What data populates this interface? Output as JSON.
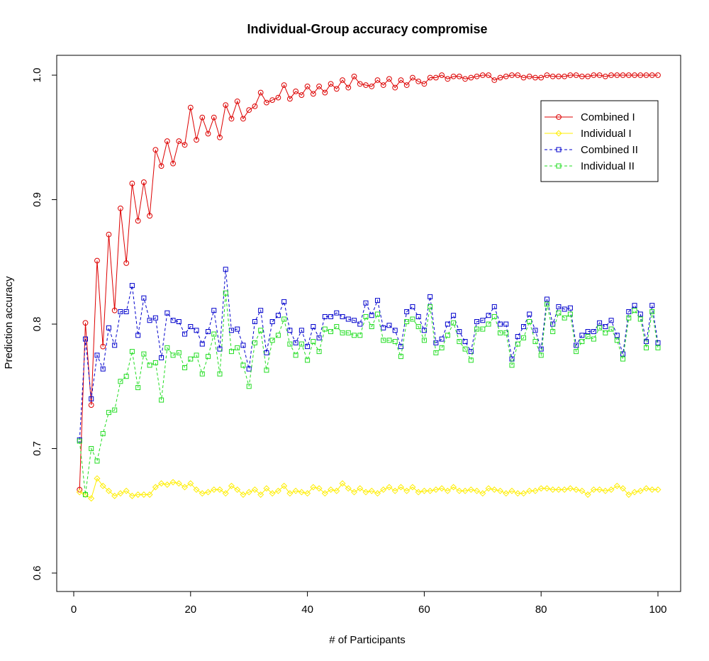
{
  "chart_data": {
    "type": "line",
    "title": "Individual-Group accuracy compromise",
    "xlabel": "# of Participants",
    "ylabel": "Prediction accuracy",
    "xlim": [
      0,
      100
    ],
    "ylim": [
      0.6,
      1.0
    ],
    "xticks": [
      0,
      20,
      40,
      60,
      80,
      100
    ],
    "yticks": [
      0.6,
      0.7,
      0.8,
      0.9,
      1.0
    ],
    "x_tick_labels": [
      "0",
      "20",
      "40",
      "60",
      "80",
      "100"
    ],
    "y_tick_labels": [
      "0.6",
      "0.7",
      "0.8",
      "0.9",
      "1.0"
    ],
    "grid": false,
    "legend_position": "top-right",
    "x": [
      1,
      2,
      3,
      4,
      5,
      6,
      7,
      8,
      9,
      10,
      11,
      12,
      13,
      14,
      15,
      16,
      17,
      18,
      19,
      20,
      21,
      22,
      23,
      24,
      25,
      26,
      27,
      28,
      29,
      30,
      31,
      32,
      33,
      34,
      35,
      36,
      37,
      38,
      39,
      40,
      41,
      42,
      43,
      44,
      45,
      46,
      47,
      48,
      49,
      50,
      51,
      52,
      53,
      54,
      55,
      56,
      57,
      58,
      59,
      60,
      61,
      62,
      63,
      64,
      65,
      66,
      67,
      68,
      69,
      70,
      71,
      72,
      73,
      74,
      75,
      76,
      77,
      78,
      79,
      80,
      81,
      82,
      83,
      84,
      85,
      86,
      87,
      88,
      89,
      90,
      91,
      92,
      93,
      94,
      95,
      96,
      97,
      98,
      99,
      100
    ],
    "series": [
      {
        "name": "Combined I",
        "color": "#dd0000",
        "line_style": "solid",
        "marker": "circle",
        "values": [
          0.667,
          0.801,
          0.735,
          0.851,
          0.782,
          0.872,
          0.811,
          0.893,
          0.849,
          0.913,
          0.883,
          0.914,
          0.887,
          0.94,
          0.927,
          0.947,
          0.929,
          0.947,
          0.944,
          0.974,
          0.948,
          0.966,
          0.953,
          0.966,
          0.95,
          0.976,
          0.965,
          0.979,
          0.965,
          0.972,
          0.975,
          0.986,
          0.978,
          0.98,
          0.982,
          0.992,
          0.981,
          0.987,
          0.984,
          0.991,
          0.985,
          0.991,
          0.986,
          0.993,
          0.989,
          0.996,
          0.99,
          0.999,
          0.993,
          0.992,
          0.991,
          0.996,
          0.992,
          0.997,
          0.99,
          0.996,
          0.992,
          0.998,
          0.995,
          0.993,
          0.998,
          0.998,
          1.0,
          0.997,
          0.999,
          0.999,
          0.997,
          0.998,
          0.999,
          1.0,
          1.0,
          0.996,
          0.998,
          0.999,
          1.0,
          1.0,
          0.998,
          0.999,
          0.998,
          0.998,
          1.0,
          0.999,
          0.999,
          0.999,
          1.0,
          1.0,
          0.999,
          0.999,
          1.0,
          1.0,
          0.999,
          1.0,
          1.0,
          1.0,
          1.0,
          1.0,
          1.0,
          1.0,
          1.0,
          1.0
        ]
      },
      {
        "name": "Individual I",
        "color": "#ffee00",
        "line_style": "solid",
        "marker": "diamond",
        "values": [
          0.665,
          0.663,
          0.66,
          0.676,
          0.67,
          0.666,
          0.662,
          0.664,
          0.666,
          0.662,
          0.663,
          0.663,
          0.663,
          0.669,
          0.672,
          0.671,
          0.673,
          0.672,
          0.669,
          0.672,
          0.667,
          0.664,
          0.665,
          0.667,
          0.667,
          0.664,
          0.67,
          0.667,
          0.663,
          0.665,
          0.667,
          0.663,
          0.668,
          0.664,
          0.666,
          0.67,
          0.664,
          0.666,
          0.665,
          0.664,
          0.669,
          0.668,
          0.664,
          0.667,
          0.666,
          0.672,
          0.668,
          0.665,
          0.668,
          0.665,
          0.666,
          0.664,
          0.667,
          0.669,
          0.666,
          0.669,
          0.666,
          0.669,
          0.665,
          0.666,
          0.666,
          0.667,
          0.668,
          0.666,
          0.669,
          0.666,
          0.666,
          0.667,
          0.666,
          0.664,
          0.668,
          0.667,
          0.666,
          0.664,
          0.666,
          0.664,
          0.664,
          0.666,
          0.666,
          0.668,
          0.668,
          0.667,
          0.667,
          0.667,
          0.668,
          0.667,
          0.666,
          0.663,
          0.667,
          0.667,
          0.666,
          0.667,
          0.67,
          0.668,
          0.663,
          0.665,
          0.666,
          0.668,
          0.667,
          0.667
        ]
      },
      {
        "name": "Combined II",
        "color": "#0000cc",
        "line_style": "dashed",
        "marker": "square",
        "values": [
          0.707,
          0.788,
          0.74,
          0.775,
          0.764,
          0.797,
          0.783,
          0.81,
          0.81,
          0.831,
          0.791,
          0.821,
          0.803,
          0.805,
          0.773,
          0.809,
          0.803,
          0.802,
          0.792,
          0.798,
          0.795,
          0.784,
          0.794,
          0.811,
          0.78,
          0.844,
          0.795,
          0.796,
          0.783,
          0.764,
          0.802,
          0.811,
          0.777,
          0.802,
          0.807,
          0.818,
          0.795,
          0.785,
          0.795,
          0.782,
          0.798,
          0.789,
          0.806,
          0.806,
          0.809,
          0.806,
          0.804,
          0.803,
          0.8,
          0.817,
          0.807,
          0.819,
          0.797,
          0.799,
          0.795,
          0.782,
          0.81,
          0.814,
          0.806,
          0.795,
          0.822,
          0.785,
          0.788,
          0.8,
          0.807,
          0.794,
          0.786,
          0.778,
          0.802,
          0.803,
          0.807,
          0.814,
          0.8,
          0.8,
          0.772,
          0.79,
          0.798,
          0.808,
          0.795,
          0.78,
          0.82,
          0.8,
          0.814,
          0.812,
          0.813,
          0.783,
          0.791,
          0.794,
          0.794,
          0.801,
          0.798,
          0.803,
          0.791,
          0.776,
          0.81,
          0.815,
          0.808,
          0.786,
          0.815,
          0.785
        ]
      },
      {
        "name": "Individual II",
        "color": "#22dd22",
        "line_style": "dashed",
        "marker": "square",
        "values": [
          0.706,
          0.663,
          0.7,
          0.69,
          0.712,
          0.729,
          0.731,
          0.754,
          0.758,
          0.778,
          0.749,
          0.776,
          0.767,
          0.769,
          0.739,
          0.781,
          0.775,
          0.777,
          0.765,
          0.772,
          0.775,
          0.76,
          0.774,
          0.792,
          0.76,
          0.825,
          0.778,
          0.781,
          0.767,
          0.75,
          0.785,
          0.795,
          0.763,
          0.787,
          0.791,
          0.804,
          0.784,
          0.775,
          0.784,
          0.771,
          0.786,
          0.778,
          0.796,
          0.794,
          0.798,
          0.793,
          0.793,
          0.791,
          0.791,
          0.806,
          0.798,
          0.808,
          0.787,
          0.787,
          0.786,
          0.774,
          0.802,
          0.804,
          0.798,
          0.787,
          0.814,
          0.777,
          0.781,
          0.791,
          0.801,
          0.786,
          0.78,
          0.771,
          0.796,
          0.796,
          0.8,
          0.806,
          0.793,
          0.793,
          0.767,
          0.784,
          0.789,
          0.802,
          0.786,
          0.775,
          0.816,
          0.794,
          0.809,
          0.805,
          0.808,
          0.778,
          0.786,
          0.79,
          0.788,
          0.797,
          0.793,
          0.796,
          0.787,
          0.772,
          0.805,
          0.811,
          0.804,
          0.781,
          0.81,
          0.781
        ]
      }
    ]
  }
}
